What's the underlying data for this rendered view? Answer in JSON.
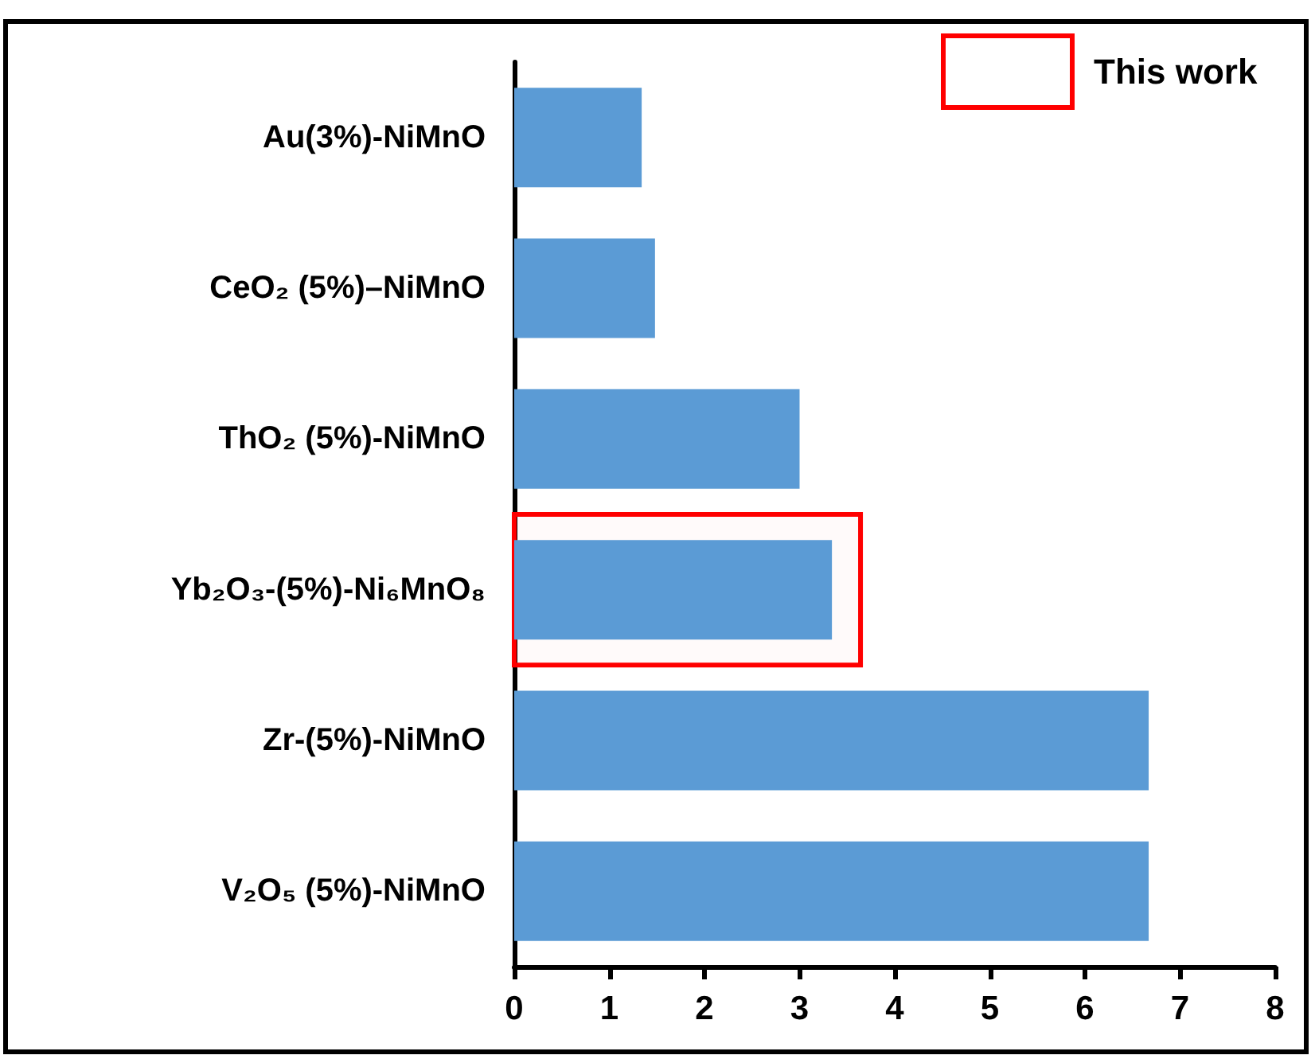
{
  "chart_data": {
    "type": "bar",
    "orientation": "horizontal",
    "categories": [
      "Au(3%)-NiMnO",
      "CeO₂ (5%)–NiMnO",
      "ThO₂ (5%)-NiMnO",
      "Yb₂O₃-(5%)-Ni₆MnO₈",
      "Zr-(5%)-NiMnO",
      "V₂O₅ (5%)-NiMnO"
    ],
    "values": [
      1.34,
      1.48,
      3.0,
      3.34,
      6.67,
      6.67
    ],
    "color": "#5b9bd5",
    "xlim": [
      0,
      8
    ],
    "xticks": [
      0,
      1,
      2,
      3,
      4,
      5,
      6,
      7,
      8
    ],
    "grid": false,
    "bands": [
      {
        "axis": "y",
        "from": "Yb₂O₃-(5%)-Ni₆MnO₈",
        "to": "Yb₂O₃-(5%)-Ni₆MnO₈",
        "label": "This work",
        "color": "#ff0000"
      }
    ]
  }
}
